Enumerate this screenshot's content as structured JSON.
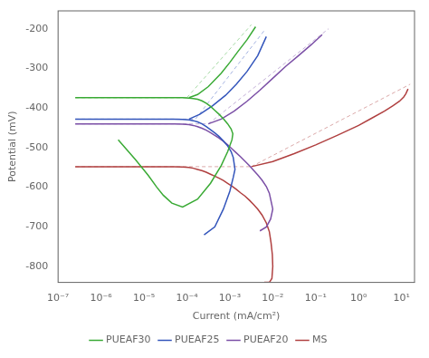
{
  "chart_data": {
    "type": "line",
    "xlabel": "Current (mA/cm²)",
    "ylabel": "Potential (mV)",
    "log": "x",
    "grid": false,
    "legend": "bottom",
    "xlim": [
      1e-07,
      20.0
    ],
    "xticks": [
      {
        "value": 1e-07,
        "label": "10⁻⁷"
      },
      {
        "value": 1e-06,
        "label": "10⁻⁶"
      },
      {
        "value": 1e-05,
        "label": "10⁻⁵"
      },
      {
        "value": 0.0001,
        "label": "10⁻⁴"
      },
      {
        "value": 0.001,
        "label": "10⁻³"
      },
      {
        "value": 0.01,
        "label": "10⁻²"
      },
      {
        "value": 0.1,
        "label": "10⁻¹"
      },
      {
        "value": 1,
        "label": "10⁰"
      },
      {
        "value": 10,
        "label": "10¹"
      }
    ],
    "ylim": [
      -840,
      -155
    ],
    "yticks": [
      -800,
      -700,
      -600,
      -500,
      -400,
      -300,
      -200
    ],
    "series": [
      {
        "name": "PUEAF30",
        "color": "#3aaa35",
        "segments": [
          {
            "line_style": "solid",
            "x": [
              2.511886e-07,
              1e-06,
              3.162278e-06,
              1e-05,
              1.995262e-05,
              3.162278e-05,
              5.011872e-05,
              7.943282e-05,
              0.0001122018,
              0.0001412538,
              0.0001778279,
              0.0002238721,
              0.0002818383,
              0.0003548134,
              0.0004466836,
              0.0005623413,
              0.0007079458,
              0.0008912509,
              0.001071519,
              0.001174898,
              0.001122018,
              0.0008912509,
              0.0006309573,
              0.0003548134,
              0.0001778279,
              7.943282e-05,
              4.466836e-05,
              2.818383e-05,
              1.995262e-05,
              1.258925e-05,
              6.309573e-06,
              2.511886e-06
            ],
            "values": [
              -374,
              -374,
              -374,
              -374,
              -374,
              -374,
              -374,
              -374,
              -375,
              -376,
              -378,
              -382,
              -388,
              -396,
              -406,
              -416,
              -427,
              -440,
              -453,
              -465,
              -480,
              -510,
              -545,
              -590,
              -630,
              -650,
              -640,
              -620,
              -600,
              -570,
              -530,
              -480
            ]
          },
          {
            "line_style": "dashed",
            "x": [
              2.511886e-07,
              0.0001
            ],
            "values": [
              -374,
              -374
            ]
          },
          {
            "line_style": "dashed",
            "x": [
              0.0001,
              0.003162278
            ],
            "values": [
              -374,
              -190
            ]
          },
          {
            "line_style": "solid",
            "x": [
              0.0001122018,
              0.0001778279,
              0.0003162278,
              0.0006309573,
              0.001,
              0.001584893,
              0.002511886,
              0.003981072
            ],
            "values": [
              -374,
              -366,
              -346,
              -312,
              -285,
              -256,
              -228,
              -195
            ]
          }
        ]
      },
      {
        "name": "PUEAF25",
        "color": "#3355bb",
        "segments": [
          {
            "line_style": "solid",
            "x": [
              2.511886e-07,
              1e-06,
              3.162278e-06,
              1e-05,
              1.995262e-05,
              3.162278e-05,
              5.011872e-05,
              7.943282e-05,
              0.0001122018,
              0.0001412538,
              0.0001778279,
              0.0002238721,
              0.0002818383,
              0.0003548134,
              0.0004466836,
              0.0005623413,
              0.0007079458,
              0.0008912509,
              0.001071519,
              0.001202264,
              0.001258925,
              0.001318257,
              0.001202264,
              0.001,
              0.0007079458,
              0.0004466836,
              0.0002511886
            ],
            "values": [
              -428,
              -428,
              -428,
              -428,
              -428,
              -428,
              -428,
              -429,
              -430,
              -432,
              -435,
              -440,
              -447,
              -455,
              -463,
              -472,
              -483,
              -496,
              -510,
              -525,
              -540,
              -555,
              -575,
              -610,
              -655,
              -700,
              -720
            ]
          },
          {
            "line_style": "dashed",
            "x": [
              2.511886e-07,
              0.0001584893
            ],
            "values": [
              -428,
              -428
            ]
          },
          {
            "line_style": "dashed",
            "x": [
              0.0001584893,
              0.006309573
            ],
            "values": [
              -428,
              -205
            ]
          },
          {
            "line_style": "solid",
            "x": [
              0.0001122018,
              0.0001995262,
              0.0003981072,
              0.0007943282,
              0.001412538,
              0.002511886,
              0.004466836,
              0.007079458
            ],
            "values": [
              -428,
              -416,
              -394,
              -368,
              -340,
              -308,
              -268,
              -220
            ]
          }
        ]
      },
      {
        "name": "PUEAF20",
        "color": "#7b4fa6",
        "segments": [
          {
            "line_style": "solid",
            "x": [
              2.511886e-07,
              1e-06,
              3.162278e-06,
              1e-05,
              1.995262e-05,
              3.162278e-05,
              5.011872e-05,
              7.943282e-05,
              0.0001122018,
              0.0001412538,
              0.0001778279,
              0.0002238721,
              0.0002818383,
              0.0003548134,
              0.0004466836,
              0.0005623413,
              0.0007079458,
              0.0008912509,
              0.001122018,
              0.001412538,
              0.001778279,
              0.002238721,
              0.002818383,
              0.003548134,
              0.004466836,
              0.005623413,
              0.007079458,
              0.008317638,
              0.009120108,
              0.01,
              0.008912509,
              0.007079458,
              0.005011872
            ],
            "values": [
              -440,
              -440,
              -440,
              -440,
              -440,
              -440,
              -440,
              -441,
              -442,
              -444,
              -447,
              -451,
              -456,
              -462,
              -469,
              -476,
              -484,
              -493,
              -503,
              -513,
              -523,
              -534,
              -545,
              -557,
              -569,
              -582,
              -598,
              -615,
              -635,
              -655,
              -680,
              -700,
              -710
            ]
          },
          {
            "line_style": "dashed",
            "x": [
              2.511886e-07,
              0.0003162278
            ],
            "values": [
              -440,
              -440
            ]
          },
          {
            "line_style": "dashed",
            "x": [
              0.0003162278,
              0.1995262
            ],
            "values": [
              -440,
              -200
            ]
          },
          {
            "line_style": "solid",
            "x": [
              0.0003162278,
              0.0006309573,
              0.001258925,
              0.002511886,
              0.005011872,
              0.01,
              0.01995262,
              0.03981072,
              0.07943282,
              0.1412538
            ],
            "values": [
              -440,
              -428,
              -408,
              -383,
              -355,
              -325,
              -295,
              -268,
              -240,
              -215
            ]
          }
        ]
      },
      {
        "name": "MS",
        "color": "#b04040",
        "segments": [
          {
            "line_style": "solid",
            "x": [
              2.511886e-07,
              1e-06,
              3.162278e-06,
              1e-05,
              1.995262e-05,
              3.162278e-05,
              5.011872e-05,
              7.943282e-05,
              0.0001122018,
              0.0001412538,
              0.0001778279,
              0.0002238721,
              0.0002818383,
              0.0003548134,
              0.0004466836,
              0.0005623413,
              0.0007079458,
              0.0008912509,
              0.001122018,
              0.001412538,
              0.001778279,
              0.002238721,
              0.002818383,
              0.003548134,
              0.004466836,
              0.005623413,
              0.007079458,
              0.008317638,
              0.009120108,
              0.009772372,
              0.01,
              0.009549926,
              0.008317638,
              0.006309573
            ],
            "values": [
              -548,
              -548,
              -548,
              -548,
              -548,
              -548,
              -548,
              -549,
              -550,
              -552,
              -555,
              -558,
              -562,
              -567,
              -572,
              -577,
              -583,
              -590,
              -597,
              -605,
              -614,
              -622,
              -632,
              -643,
              -655,
              -670,
              -690,
              -712,
              -740,
              -770,
              -800,
              -830,
              -840,
              -840
            ]
          },
          {
            "line_style": "dashed",
            "x": [
              2.511886e-07,
              0.003162278
            ],
            "values": [
              -548,
              -548
            ]
          },
          {
            "line_style": "dashed",
            "x": [
              0.003162278,
              15.84893
            ],
            "values": [
              -548,
              -340
            ]
          },
          {
            "line_style": "solid",
            "x": [
              0.003162278,
              0.01,
              0.03162278,
              0.1,
              0.3162278,
              1,
              1.995262,
              3.981072,
              6.309573,
              8.912509,
              11.22018,
              12.58925,
              14.12538
            ],
            "values": [
              -548,
              -535,
              -515,
              -493,
              -469,
              -444,
              -426,
              -408,
              -394,
              -383,
              -372,
              -364,
              -352
            ]
          }
        ]
      }
    ]
  }
}
